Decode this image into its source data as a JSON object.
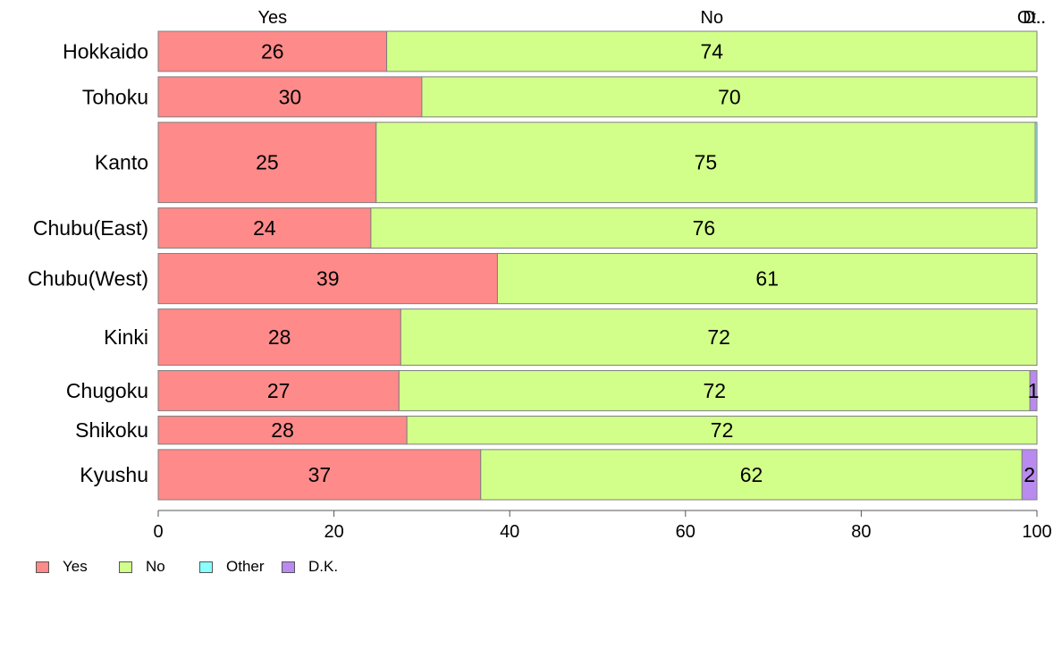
{
  "chart_data": {
    "type": "bar",
    "orientation": "horizontal",
    "stacked": true,
    "categories": [
      "Hokkaido",
      "Tohoku",
      "Kanto",
      "Chubu(East)",
      "Chubu(West)",
      "Kinki",
      "Chugoku",
      "Shikoku",
      "Kyushu"
    ],
    "bar_weights": [
      1,
      1,
      2,
      1,
      1.25,
      1.4,
      1,
      0.7,
      1.25
    ],
    "series": [
      {
        "name": "Yes",
        "color": "#ff8a8a",
        "values": [
          26,
          30,
          24.8,
          24.2,
          38.6,
          27.6,
          27.4,
          28.3,
          36.7
        ],
        "labels": [
          "26",
          "30",
          "25",
          "24",
          "39",
          "28",
          "27",
          "28",
          "37"
        ]
      },
      {
        "name": "No",
        "color": "#d2ff8a",
        "values": [
          74,
          70,
          75,
          75.8,
          61.4,
          72.4,
          71.8,
          71.7,
          61.6
        ],
        "labels": [
          "74",
          "70",
          "75",
          "76",
          "61",
          "72",
          "72",
          "72",
          "62"
        ]
      },
      {
        "name": "Other",
        "color": "#8affff",
        "values": [
          0,
          0,
          0.2,
          0,
          0,
          0,
          0,
          0,
          0
        ],
        "labels": [
          "",
          "",
          "",
          "",
          "",
          "",
          "",
          "",
          ""
        ]
      },
      {
        "name": "D.K.",
        "color": "#b98af0",
        "values": [
          0,
          0,
          0,
          0,
          0,
          0,
          0.8,
          0,
          1.7
        ],
        "labels": [
          "",
          "",
          "",
          "",
          "",
          "",
          "1",
          "",
          "2"
        ]
      }
    ],
    "top_labels": [
      "Yes",
      "No",
      "Ot..",
      "D.."
    ],
    "xlim": [
      0,
      100
    ],
    "xticks": [
      0,
      20,
      40,
      60,
      80,
      100
    ],
    "grid": false,
    "legend_position": "bottom-left",
    "title": "",
    "xlabel": "",
    "ylabel": ""
  }
}
